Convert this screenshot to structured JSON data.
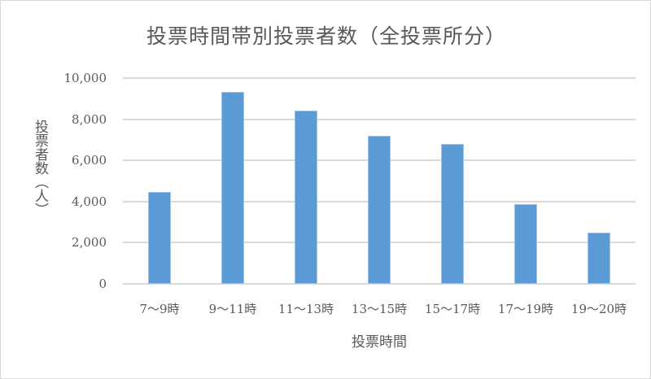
{
  "chart_data": {
    "type": "bar",
    "title": "投票時間帯別投票者数（全投票所分）",
    "xlabel": "投票時間",
    "ylabel": "投票者数（人）",
    "categories": [
      "7～9時",
      "9～11時",
      "11～13時",
      "13～15時",
      "15～17時",
      "17～19時",
      "19～20時"
    ],
    "values": [
      4470,
      9330,
      8420,
      7190,
      6800,
      3870,
      2490
    ],
    "ylim": [
      0,
      10000
    ],
    "yticks": [
      "0",
      "2,000",
      "4,000",
      "6,000",
      "8,000",
      "10,000"
    ],
    "grid": true,
    "legend": "none",
    "bar_color": "#5b9bd5"
  }
}
